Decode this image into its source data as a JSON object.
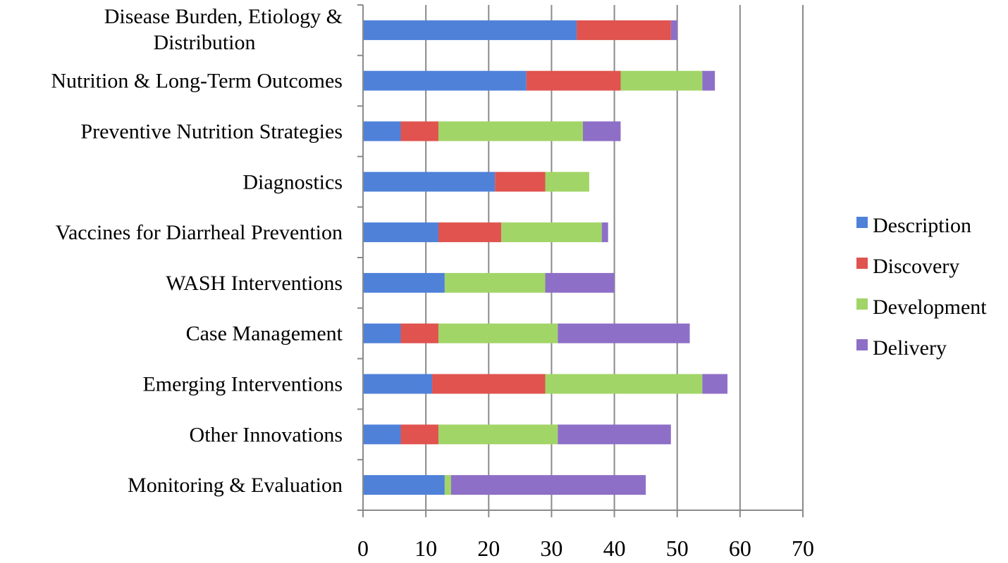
{
  "chart_data": {
    "type": "bar",
    "orientation": "horizontal",
    "stacked": true,
    "title": "",
    "xlabel": "",
    "ylabel": "",
    "xlim": [
      0,
      70
    ],
    "x_ticks": [
      0,
      10,
      20,
      30,
      40,
      50,
      60,
      70
    ],
    "grid": "vertical",
    "legend_position": "right",
    "categories": [
      "Disease Burden, Etiology & Distribution",
      "Nutrition & Long-Term Outcomes",
      "Preventive Nutrition Strategies",
      "Diagnostics",
      "Vaccines for Diarrheal Prevention",
      "WASH Interventions",
      "Case Management",
      "Emerging Interventions",
      "Other Innovations",
      "Monitoring & Evaluation"
    ],
    "category_lines": [
      [
        "Disease Burden, Etiology &",
        "Distribution"
      ],
      [
        "Nutrition & Long-Term Outcomes"
      ],
      [
        "Preventive Nutrition Strategies"
      ],
      [
        "Diagnostics"
      ],
      [
        "Vaccines for Diarrheal Prevention"
      ],
      [
        "WASH Interventions"
      ],
      [
        "Case Management"
      ],
      [
        "Emerging Interventions"
      ],
      [
        "Other Innovations"
      ],
      [
        "Monitoring & Evaluation"
      ]
    ],
    "series": [
      {
        "name": "Description",
        "color": "#4f81d9",
        "values": [
          34,
          26,
          6,
          21,
          12,
          13,
          6,
          11,
          6,
          13
        ]
      },
      {
        "name": "Discovery",
        "color": "#e0534f",
        "values": [
          15,
          15,
          6,
          8,
          10,
          0,
          6,
          18,
          6,
          0
        ]
      },
      {
        "name": "Development",
        "color": "#a2d567",
        "values": [
          0,
          13,
          23,
          7,
          16,
          16,
          19,
          25,
          19,
          1
        ]
      },
      {
        "name": "Delivery",
        "color": "#8e6fc7",
        "values": [
          1,
          2,
          6,
          0,
          1,
          11,
          21,
          4,
          18,
          31
        ]
      }
    ]
  }
}
